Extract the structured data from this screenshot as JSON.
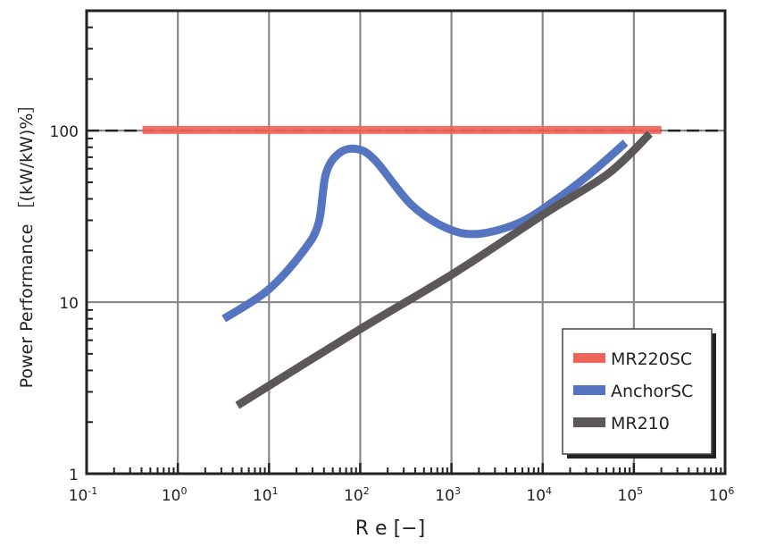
{
  "chart_data": {
    "type": "line",
    "title": "",
    "xlabel": "R e [−]",
    "ylabel": "Power Performance ［(kW/kW)%］",
    "xscale": "log",
    "yscale": "log",
    "xlim": [
      0.1,
      1000000
    ],
    "ylim": [
      1,
      500
    ],
    "grid": true,
    "legend_position": "bottom-right",
    "x_ticks": [
      {
        "value": 0.1,
        "base": "10",
        "exp": "-1"
      },
      {
        "value": 1,
        "base": "10",
        "exp": "0"
      },
      {
        "value": 10,
        "base": "10",
        "exp": "1"
      },
      {
        "value": 100,
        "base": "10",
        "exp": "2"
      },
      {
        "value": 1000,
        "base": "10",
        "exp": "3"
      },
      {
        "value": 10000,
        "base": "10",
        "exp": "4"
      },
      {
        "value": 100000,
        "base": "10",
        "exp": "5"
      },
      {
        "value": 1000000,
        "base": "10",
        "exp": "6"
      }
    ],
    "y_ticks": [
      {
        "value": 1,
        "label": "1"
      },
      {
        "value": 10,
        "label": "10"
      },
      {
        "value": 100,
        "label": "100"
      }
    ],
    "reference_line": {
      "value": 100,
      "style": "dashed"
    },
    "series": [
      {
        "name": "MR220SC",
        "color": "#f0655a",
        "x": [
          0.41,
          200000
        ],
        "y": [
          101,
          101
        ]
      },
      {
        "name": "AnchorSC",
        "color": "#5575c0",
        "x": [
          3.2,
          9.8,
          24,
          35,
          42,
          59,
          93,
          146,
          363,
          890,
          1950,
          5500,
          13500,
          33000,
          81000
        ],
        "y": [
          8,
          11.8,
          20,
          29,
          56,
          74,
          78,
          67,
          37,
          27,
          25,
          29,
          39,
          56,
          85
        ]
      },
      {
        "name": "MR210",
        "color": "#5c5758",
        "x": [
          4.5,
          93,
          1120,
          10700,
          52000,
          150000
        ],
        "y": [
          2.5,
          6.8,
          15,
          33,
          56,
          96
        ]
      }
    ]
  }
}
